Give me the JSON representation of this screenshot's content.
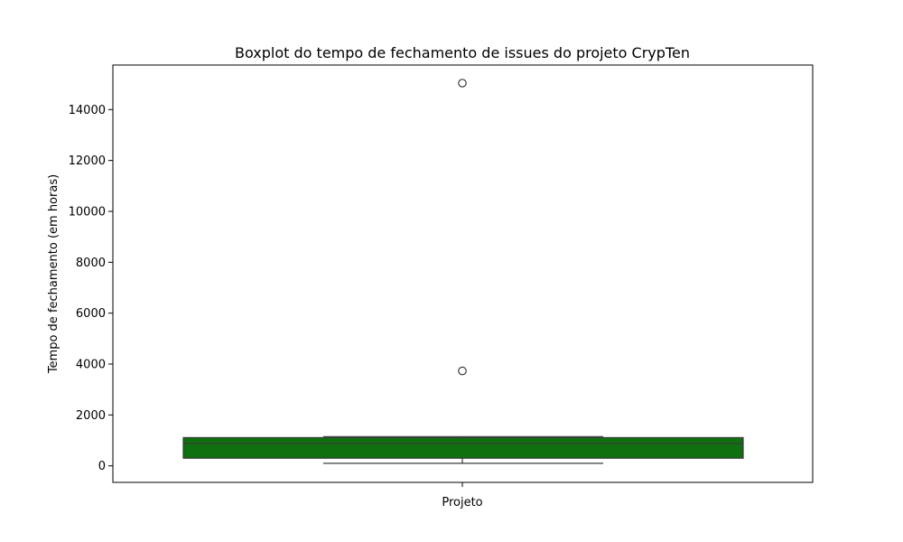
{
  "chart_data": {
    "type": "box",
    "title": "Boxplot do tempo de fechamento de issues do projeto CrypTen",
    "xlabel": "",
    "ylabel": "Tempo de fechamento (em horas)",
    "categories": [
      "Projeto"
    ],
    "ylim": [
      -650,
      15750
    ],
    "yticks": [
      0,
      2000,
      4000,
      6000,
      8000,
      10000,
      12000,
      14000
    ],
    "ytick_labels": [
      "0",
      "2000",
      "4000",
      "6000",
      "8000",
      "10000",
      "12000",
      "14000"
    ],
    "box": {
      "whisker_low": 100,
      "q1": 300,
      "median": 880,
      "q3": 1110,
      "whisker_high": 1150,
      "outliers": [
        3730,
        15040
      ]
    },
    "box_color": "#0e700e",
    "grid": false,
    "legend": "none"
  }
}
